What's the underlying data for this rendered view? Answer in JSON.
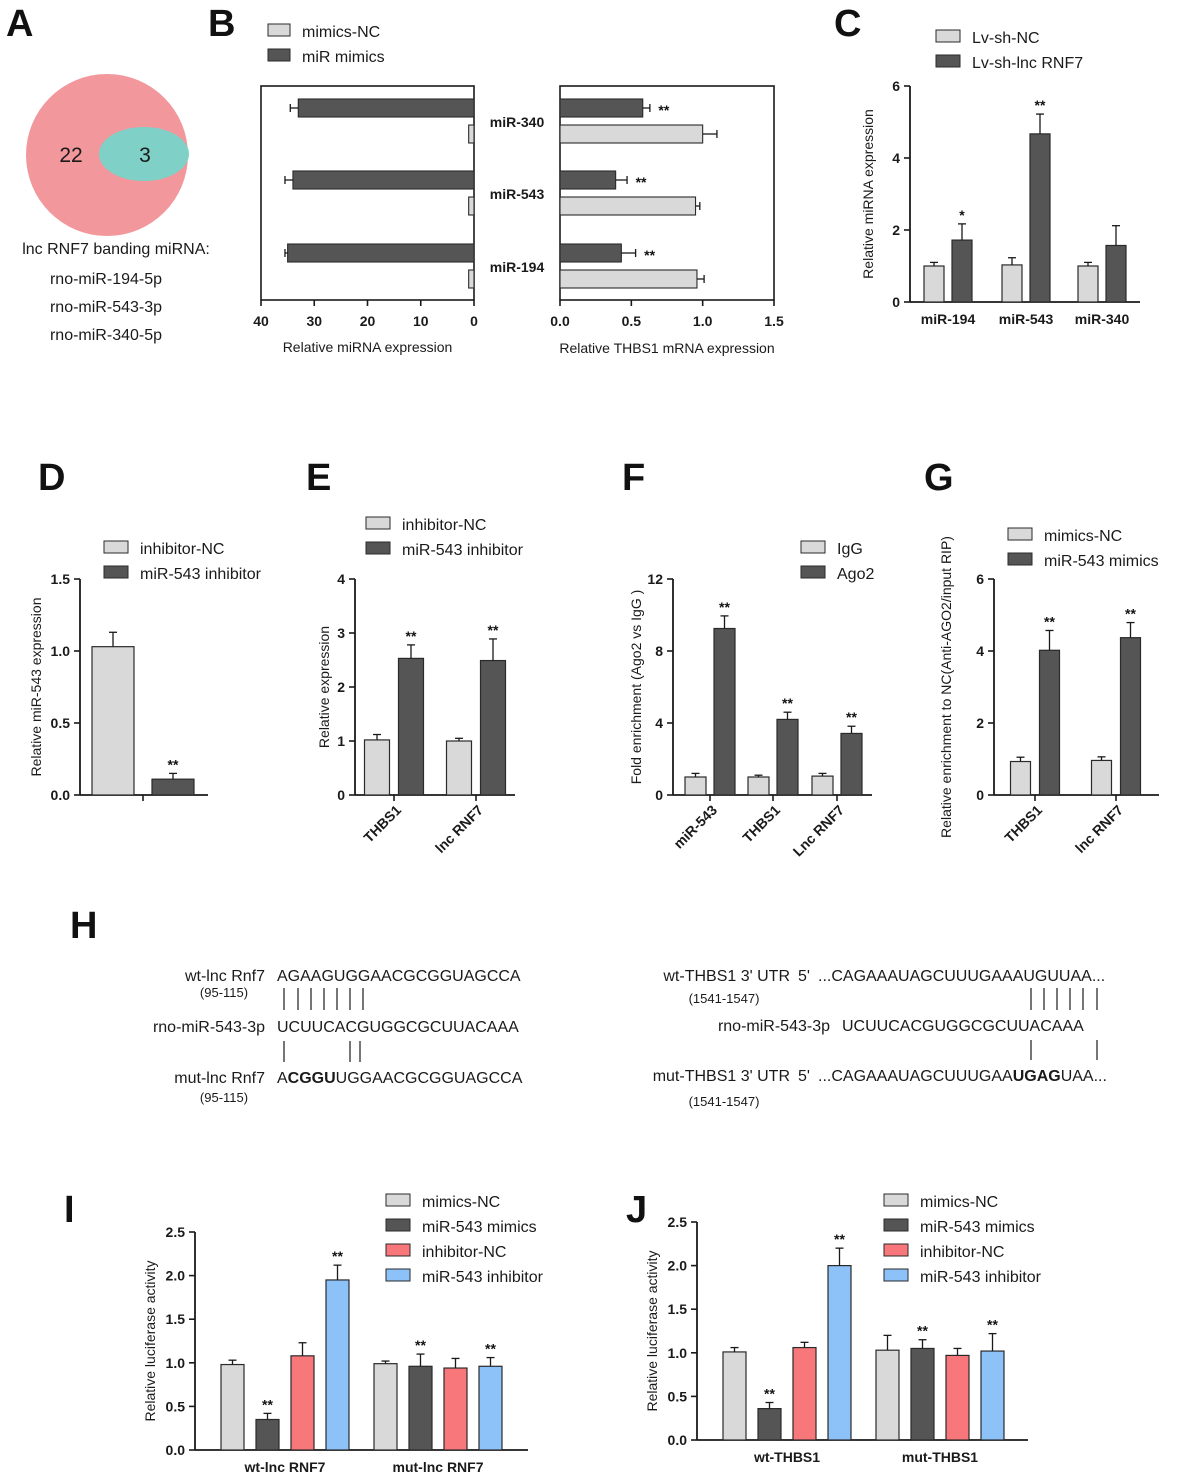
{
  "colors": {
    "light_gray": "#d9d9d9",
    "dark_gray": "#555555",
    "red": "#f8777a",
    "blue": "#8cc2f8",
    "venn_big": "#f2979b",
    "venn_small": "#7fd0c7"
  },
  "panels": {
    "A": {
      "label": "A",
      "venn": {
        "left_count": "22",
        "overlap_count": "3"
      },
      "caption": "lnc RNF7 banding miRNA:",
      "mirnas": [
        "rno-miR-194-5p",
        "rno-miR-543-3p",
        "rno-miR-340-5p"
      ]
    },
    "B": {
      "label": "B",
      "legend": [
        "mimics-NC",
        "miR mimics"
      ]
    },
    "C": {
      "label": "C",
      "legend": [
        "Lv-sh-NC",
        "Lv-sh-lnc RNF7"
      ]
    },
    "D": {
      "label": "D",
      "legend": [
        "inhibitor-NC",
        "miR-543 inhibitor"
      ]
    },
    "E": {
      "label": "E",
      "legend": [
        "inhibitor-NC",
        "miR-543 inhibitor"
      ]
    },
    "F": {
      "label": "F",
      "legend": [
        "IgG",
        "Ago2"
      ]
    },
    "G": {
      "label": "G",
      "legend": [
        "mimics-NC",
        "miR-543 mimics"
      ]
    },
    "H": {
      "label": "H",
      "left": {
        "wt_name": "wt-lnc Rnf7",
        "wt_pos": "(95-115)",
        "wt_seq": "AGAAGUGGAACGCGGUAGCCA",
        "mir_name": "rno-miR-543-3p",
        "mir_seq": "UCUUCACGUGGCGCUUACAAA",
        "mut_name": "mut-lnc Rnf7",
        "mut_pos": "(95-115)",
        "mut_seq_a": "A",
        "mut_seq_b": "CGGU",
        "mut_seq_c": "UGGAACGCGGUAGCCA"
      },
      "right": {
        "wt_name": "wt-THBS1 3' UTR",
        "wt_prefix": "5'",
        "wt_seq": "...CAGAAAUAGCUUUGAAAUGUUAA...",
        "wt_pos": "(1541-1547)",
        "mir_name": "rno-miR-543-3p",
        "mir_seq": "UCUUCACGUGGCGCUUACAAA",
        "mut_name": "mut-THBS1 3' UTR",
        "mut_prefix": "5'",
        "mut_seq_a": "...CAGAAAUAGCUUUGAA",
        "mut_seq_b": "UGAG",
        "mut_seq_c": "UAA...",
        "mut_pos": "(1541-1547)"
      }
    },
    "I": {
      "label": "I",
      "legend": [
        "mimics-NC",
        "miR-543 mimics",
        "inhibitor-NC",
        "miR-543 inhibitor"
      ]
    },
    "J": {
      "label": "J",
      "legend": [
        "mimics-NC",
        "miR-543 mimics",
        "inhibitor-NC",
        "miR-543 inhibitor"
      ]
    }
  },
  "chart_data": [
    {
      "id": "B_left",
      "type": "bar",
      "orientation": "horizontal",
      "xlabel": "Relative miRNA expression",
      "xlim": [
        40,
        0
      ],
      "xticks": [
        "40",
        "30",
        "20",
        "10",
        "0"
      ],
      "categories": [
        "miR-340",
        "miR-543",
        "miR-194"
      ],
      "series": [
        {
          "name": "mimics-NC",
          "values": [
            1.0,
            1.0,
            1.0
          ]
        },
        {
          "name": "miR mimics",
          "values": [
            33,
            34,
            35
          ]
        }
      ]
    },
    {
      "id": "B_right",
      "type": "bar",
      "orientation": "horizontal",
      "xlabel": "Relative THBS1 mRNA expression",
      "xlim": [
        0,
        1.5
      ],
      "xticks": [
        "0.0",
        "0.5",
        "1.0",
        "1.5"
      ],
      "categories": [
        "miR-340",
        "miR-543",
        "miR-194"
      ],
      "series": [
        {
          "name": "mimics-NC",
          "values": [
            1.0,
            0.95,
            0.96
          ]
        },
        {
          "name": "miR mimics",
          "values": [
            0.58,
            0.39,
            0.43
          ]
        }
      ],
      "significance": [
        "**",
        "**",
        "**"
      ]
    },
    {
      "id": "C",
      "type": "bar",
      "ylabel": "Relative  miRNA expression",
      "ylim": [
        0,
        6
      ],
      "yticks": [
        "0",
        "2",
        "4",
        "6"
      ],
      "categories": [
        "miR-194",
        "miR-543",
        "miR-340"
      ],
      "series": [
        {
          "name": "Lv-sh-NC",
          "values": [
            1.0,
            1.03,
            1.0
          ]
        },
        {
          "name": "Lv-sh-lnc RNF7",
          "values": [
            1.72,
            4.67,
            1.57
          ]
        }
      ],
      "significance": [
        "*",
        "**",
        ""
      ]
    },
    {
      "id": "D",
      "type": "bar",
      "ylabel": "Relative  miR-543 expression",
      "ylim": [
        0,
        1.5
      ],
      "yticks": [
        "0.0",
        "0.5",
        "1.0",
        "1.5"
      ],
      "categories": [
        ""
      ],
      "series": [
        {
          "name": "inhibitor-NC",
          "values": [
            1.03
          ]
        },
        {
          "name": "miR-543 inhibitor",
          "values": [
            0.11
          ]
        }
      ],
      "significance": [
        "**"
      ]
    },
    {
      "id": "E",
      "type": "bar",
      "ylabel": "Relative  expression",
      "ylim": [
        0,
        4
      ],
      "yticks": [
        "0",
        "1",
        "2",
        "3",
        "4"
      ],
      "categories": [
        "THBS1",
        "lnc RNF7"
      ],
      "series": [
        {
          "name": "inhibitor-NC",
          "values": [
            1.02,
            1.0
          ]
        },
        {
          "name": "miR-543 inhibitor",
          "values": [
            2.53,
            2.49
          ]
        }
      ],
      "significance": [
        "**",
        "**"
      ]
    },
    {
      "id": "F",
      "type": "bar",
      "ylabel": "Fold enrichment (Ago2 vs IgG )",
      "ylim": [
        0,
        12
      ],
      "yticks": [
        "0",
        "4",
        "8",
        "12"
      ],
      "categories": [
        "miR-543",
        "THBS1",
        "Lnc RNF7"
      ],
      "series": [
        {
          "name": "IgG",
          "values": [
            1.0,
            1.0,
            1.05
          ]
        },
        {
          "name": "Ago2",
          "values": [
            9.25,
            4.2,
            3.42
          ]
        }
      ],
      "significance": [
        "**",
        "**",
        "**"
      ]
    },
    {
      "id": "G",
      "type": "bar",
      "ylabel": "Relative enrichment to NC(Anti-AGO2/input RIP)",
      "ylim": [
        0,
        6
      ],
      "yticks": [
        "0",
        "2",
        "4",
        "6"
      ],
      "categories": [
        "THBS1",
        "lnc RNF7"
      ],
      "series": [
        {
          "name": "mimics-NC",
          "values": [
            0.93,
            0.96
          ]
        },
        {
          "name": "miR-543 mimics",
          "values": [
            4.02,
            4.37
          ]
        }
      ],
      "significance": [
        "**",
        "**"
      ]
    },
    {
      "id": "I",
      "type": "bar",
      "ylabel": "Relative luciferase activity",
      "ylim": [
        0,
        2.5
      ],
      "yticks": [
        "0.0",
        "0.5",
        "1.0",
        "1.5",
        "2.0",
        "2.5"
      ],
      "categories": [
        "wt-lnc RNF7",
        "mut-lnc RNF7"
      ],
      "series": [
        {
          "name": "mimics-NC",
          "values": [
            0.98,
            0.99
          ]
        },
        {
          "name": "miR-543 mimics",
          "values": [
            0.35,
            0.96
          ]
        },
        {
          "name": "inhibitor-NC",
          "values": [
            1.08,
            0.94
          ]
        },
        {
          "name": "miR-543 inhibitor",
          "values": [
            1.95,
            0.96
          ]
        }
      ],
      "significance": [
        "**",
        "**",
        ""
      ]
    },
    {
      "id": "J",
      "type": "bar",
      "ylabel": "Relative luciferase activity",
      "ylim": [
        0,
        2.5
      ],
      "yticks": [
        "0.0",
        "0.5",
        "1.0",
        "1.5",
        "2.0",
        "2.5"
      ],
      "categories": [
        "wt-THBS1",
        "mut-THBS1"
      ],
      "series": [
        {
          "name": "mimics-NC",
          "values": [
            1.01,
            1.03
          ]
        },
        {
          "name": "miR-543 mimics",
          "values": [
            0.36,
            1.05
          ]
        },
        {
          "name": "inhibitor-NC",
          "values": [
            1.06,
            0.97
          ]
        },
        {
          "name": "miR-543 inhibitor",
          "values": [
            2.0,
            1.02
          ]
        }
      ],
      "significance": [
        "**",
        "**",
        ""
      ]
    }
  ]
}
